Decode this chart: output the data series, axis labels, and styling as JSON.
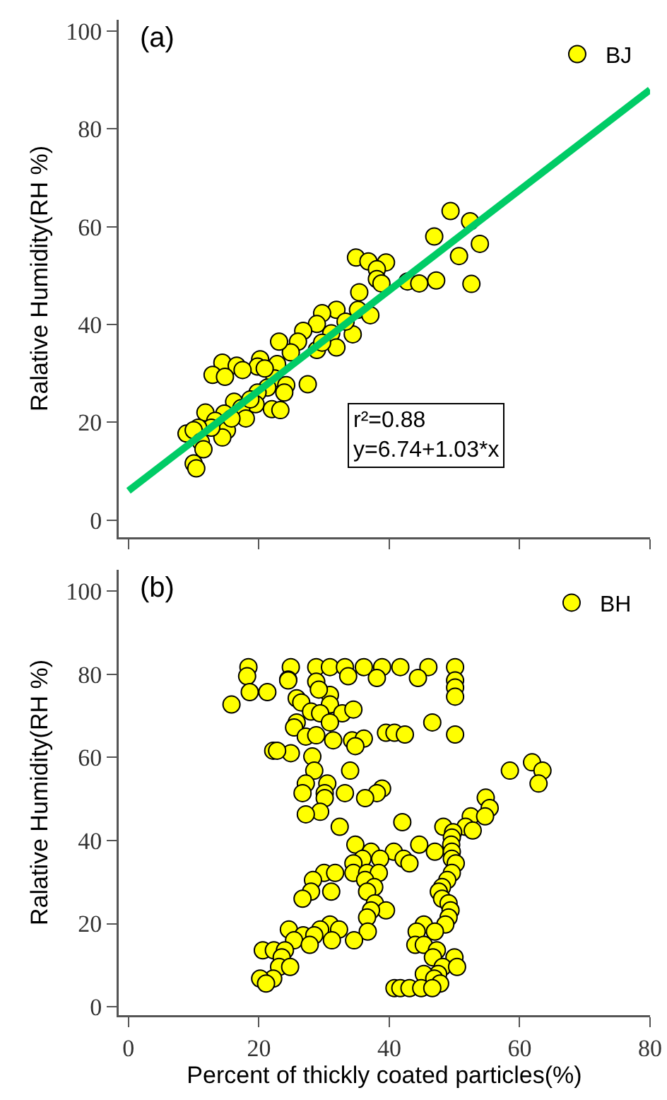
{
  "chart_data": [
    {
      "type": "scatter",
      "ylabel": "Ralative Humidity(RH %)",
      "legend": "top right",
      "tick_labels": "y",
      "xlim": [
        -1.5,
        80
      ],
      "xticks": [
        {
          "value": 0,
          "label": null
        },
        {
          "value": 20,
          "label": null
        },
        {
          "value": 40,
          "label": null
        },
        {
          "value": 60,
          "label": null
        },
        {
          "value": 80,
          "label": null
        }
      ],
      "ylim": [
        -3.5,
        102.3
      ],
      "yticks": [
        0,
        20,
        40,
        60,
        80,
        100
      ],
      "annotations": [
        "(a)",
        "r²=0.88\ny=6.74+1.03*x"
      ],
      "series": [
        {
          "name": "BJ",
          "color": "#ffff00",
          "marker": "circle",
          "x": [
            49.4,
            52.4,
            46.9,
            53.9,
            50.7,
            52.6,
            47.2,
            42.8,
            44.6,
            34.9,
            36.8,
            39.5,
            38.1,
            38.1,
            38.8,
            35.4,
            35.2,
            37.1,
            34.4,
            31.9,
            29.7,
            28.9,
            26.8,
            33.3,
            31.1,
            31.9,
            28.9,
            26.0,
            24.9,
            23.1,
            22.8,
            20.2,
            19.8,
            14.4,
            12.9,
            16.6,
            17.5,
            14.8,
            22.4,
            24.2,
            27.5,
            21.3,
            23.9,
            19.8,
            19.5,
            22.0,
            23.3,
            16.2,
            17.3,
            18.0,
            14.7,
            11.8,
            13.3,
            15.1,
            14.4,
            12.7,
            10.7,
            8.9,
            10.0,
            11.1,
            11.5,
            10.0,
            10.4,
            15.8,
            18.7,
            29.7,
            20.9
          ],
          "values": [
            63.2,
            61.1,
            58.0,
            56.5,
            54.0,
            48.3,
            49.0,
            48.8,
            48.4,
            53.7,
            52.9,
            52.7,
            51.3,
            49.3,
            48.4,
            46.6,
            43.0,
            41.9,
            38.0,
            43.0,
            42.3,
            40.1,
            38.7,
            40.6,
            38.2,
            35.3,
            34.8,
            36.5,
            34.3,
            36.5,
            31.9,
            32.9,
            31.4,
            32.2,
            29.7,
            31.6,
            30.7,
            29.3,
            29.0,
            27.6,
            27.8,
            27.1,
            26.1,
            26.1,
            23.7,
            22.7,
            22.5,
            24.2,
            22.9,
            20.8,
            21.8,
            22.0,
            20.3,
            18.4,
            16.9,
            18.9,
            18.9,
            17.7,
            18.4,
            16.0,
            14.5,
            11.6,
            10.6,
            20.8,
            24.7,
            36.3,
            31.0
          ]
        },
        {
          "type": "line",
          "color": "#00cc66",
          "marker": "none",
          "x": [
            0,
            80
          ],
          "values": [
            6,
            88
          ]
        }
      ]
    },
    {
      "type": "scatter",
      "xlabel": "Percent of thickly coated particles(%)",
      "ylabel": "Ralative Humidity(RH %)",
      "legend": "top right",
      "marker": "circle",
      "xlim": [
        -1.5,
        80
      ],
      "xticks": [
        0,
        20,
        40,
        60,
        80
      ],
      "ylim": [
        -2,
        105.1
      ],
      "yticks": [
        0,
        20,
        40,
        60,
        80,
        100
      ],
      "annotations": [
        "(b)"
      ],
      "series": [
        {
          "name": "BH",
          "color": "#ffff00",
          "x": [
            18.4,
            24.9,
            28.8,
            30.9,
            33.2,
            36.1,
            38.9,
            41.7,
            46.0,
            50.1,
            18.2,
            24.5,
            28.8,
            33.7,
            38.1,
            44.4,
            50.1,
            50.1,
            24.5,
            18.6,
            21.3,
            25.8,
            30.9,
            29.2,
            50.1,
            26.5,
            15.8,
            28.0,
            30.9,
            29.4,
            32.8,
            34.5,
            25.8,
            30.9,
            46.6,
            25.4,
            39.5,
            40.8,
            42.4,
            50.1,
            27.2,
            28.8,
            31.4,
            34.3,
            36.1,
            34.8,
            22.2,
            24.9,
            22.8,
            28.2,
            61.9,
            58.5,
            63.5,
            34.0,
            28.5,
            62.9,
            27.2,
            30.5,
            38.9,
            38.1,
            26.7,
            33.2,
            30.1,
            54.8,
            36.3,
            30.1,
            55.4,
            29.4,
            27.2,
            52.5,
            54.7,
            42.0,
            32.4,
            48.3,
            51.7,
            52.8,
            49.8,
            49.6,
            34.8,
            44.6,
            49.5,
            37.2,
            40.7,
            47.0,
            49.6,
            38.6,
            35.9,
            42.2,
            49.6,
            43.1,
            34.5,
            50.2,
            30.0,
            31.7,
            34.5,
            36.6,
            38.4,
            49.6,
            28.3,
            36.3,
            48.9,
            37.7,
            48.1,
            31.1,
            28.0,
            36.6,
            47.6,
            26.7,
            48.1,
            37.8,
            49.1,
            39.5,
            37.2,
            49.4,
            36.6,
            49.1,
            30.9,
            48.6,
            45.3,
            24.6,
            29.4,
            32.3,
            36.7,
            44.2,
            47.0,
            26.8,
            28.5,
            34.6,
            31.2,
            25.4,
            27.8,
            44.0,
            45.3,
            20.6,
            22.3,
            24.0,
            47.3,
            46.7,
            50.0,
            23.5,
            23.1,
            24.8,
            48.2,
            50.4,
            47.5,
            45.3,
            22.2,
            20.2,
            46.9,
            21.1,
            47.8,
            40.8,
            41.7,
            43.1,
            44.9,
            46.6
          ],
          "values": [
            81.7,
            81.7,
            81.7,
            81.7,
            81.7,
            81.7,
            81.7,
            81.7,
            81.7,
            81.7,
            79.5,
            78.7,
            78.2,
            79.5,
            79.1,
            79.1,
            78.5,
            76.8,
            78.5,
            75.7,
            75.7,
            74.2,
            75.0,
            76.3,
            74.6,
            73.2,
            72.7,
            71.0,
            72.7,
            70.6,
            70.6,
            71.5,
            68.4,
            68.4,
            68.4,
            67.2,
            65.9,
            65.9,
            65.5,
            65.5,
            65.0,
            65.3,
            64.1,
            64.1,
            64.5,
            62.7,
            61.6,
            61.0,
            61.6,
            60.2,
            58.8,
            56.8,
            56.8,
            56.8,
            56.8,
            53.7,
            53.7,
            53.7,
            52.5,
            51.4,
            51.4,
            51.4,
            51.4,
            50.3,
            50.2,
            50.2,
            47.8,
            46.9,
            46.3,
            45.8,
            45.8,
            44.4,
            43.3,
            43.3,
            43.3,
            42.4,
            42.0,
            40.7,
            39.0,
            39.0,
            39.0,
            37.3,
            37.3,
            37.3,
            37.3,
            35.6,
            35.6,
            35.6,
            35.6,
            34.5,
            34.5,
            34.5,
            32.2,
            32.2,
            32.2,
            32.2,
            32.2,
            32.2,
            30.5,
            30.5,
            30.5,
            28.8,
            28.8,
            27.7,
            27.7,
            27.7,
            27.7,
            26.0,
            26.0,
            24.9,
            24.9,
            23.2,
            23.2,
            23.2,
            21.5,
            21.5,
            19.8,
            19.8,
            19.8,
            18.6,
            18.6,
            18.6,
            18.1,
            18.1,
            18.1,
            17.2,
            17.2,
            16.0,
            16.0,
            16.0,
            14.9,
            14.9,
            14.9,
            13.6,
            13.6,
            13.6,
            13.6,
            11.9,
            11.9,
            11.9,
            9.6,
            9.6,
            9.6,
            9.6,
            7.9,
            7.9,
            6.8,
            6.8,
            6.8,
            5.6,
            5.6,
            4.5,
            4.5,
            4.5,
            4.5,
            4.5
          ]
        }
      ]
    }
  ]
}
